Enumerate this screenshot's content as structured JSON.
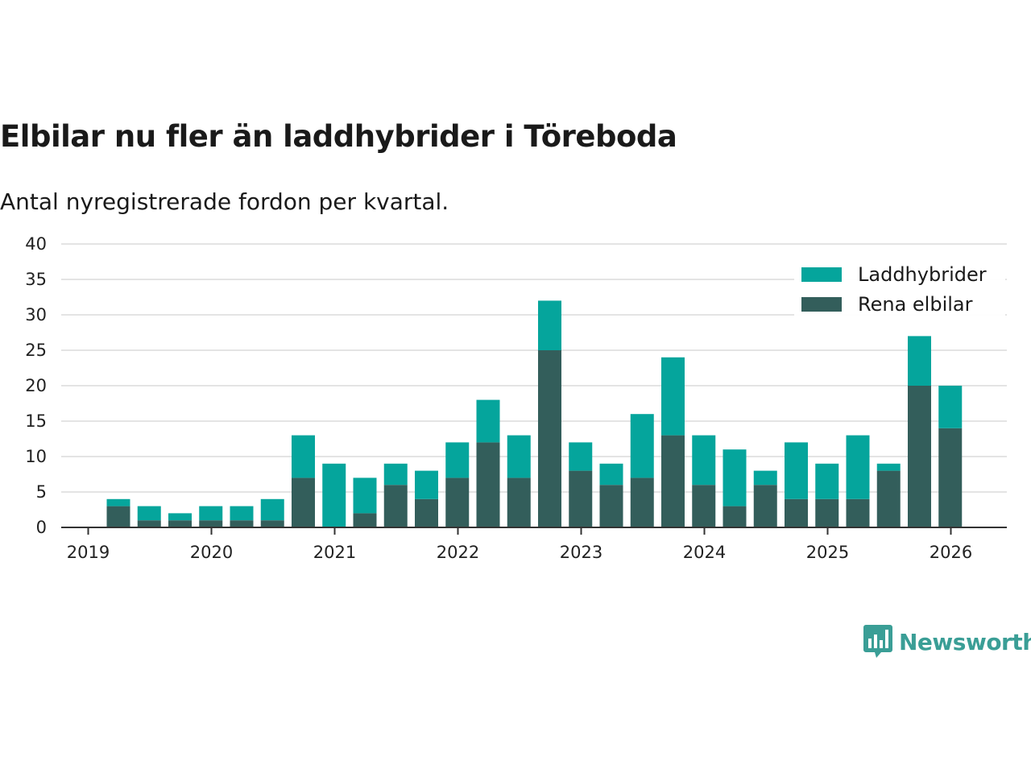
{
  "title": "Elbilar nu fler än laddhybrider i Töreboda",
  "subtitle": "Antal nyregistrerade fordon per kvartal.",
  "brand": {
    "name": "Newsworthy",
    "icon": "newsworthy-logo-icon",
    "color": "#3a9e96"
  },
  "chart_data": {
    "type": "bar",
    "stacked": true,
    "title": "Elbilar nu fler än laddhybrider i Töreboda",
    "subtitle": "Antal nyregistrerade fordon per kvartal.",
    "xlabel": "",
    "ylabel": "",
    "ylim": [
      0,
      40
    ],
    "yticks": [
      0,
      5,
      10,
      15,
      20,
      25,
      30,
      35,
      40
    ],
    "xticks": [
      "2019",
      "2020",
      "2021",
      "2022",
      "2023",
      "2024",
      "2025",
      "2026"
    ],
    "grid": true,
    "legend_position": "top-right",
    "categories": [
      "2019 Q1",
      "2019 Q2",
      "2019 Q3",
      "2019 Q4",
      "2020 Q1",
      "2020 Q2",
      "2020 Q3",
      "2020 Q4",
      "2021 Q1",
      "2021 Q2",
      "2021 Q3",
      "2021 Q4",
      "2022 Q1",
      "2022 Q2",
      "2022 Q3",
      "2022 Q4",
      "2023 Q1",
      "2023 Q2",
      "2023 Q3",
      "2023 Q4",
      "2024 Q1",
      "2024 Q2",
      "2024 Q3",
      "2024 Q4",
      "2025 Q1",
      "2025 Q2",
      "2025 Q3",
      "2025 Q4"
    ],
    "series": [
      {
        "name": "Rena elbilar",
        "color": "#335e5b",
        "values": [
          3,
          1,
          1,
          1,
          1,
          1,
          7,
          0,
          2,
          6,
          4,
          7,
          12,
          7,
          25,
          8,
          6,
          7,
          13,
          6,
          3,
          6,
          4,
          4,
          4,
          8,
          20,
          14
        ]
      },
      {
        "name": "Laddhybrider",
        "color": "#05a59c",
        "values": [
          1,
          2,
          1,
          2,
          2,
          3,
          6,
          9,
          5,
          3,
          4,
          5,
          6,
          6,
          7,
          4,
          3,
          9,
          11,
          7,
          8,
          2,
          8,
          5,
          9,
          1,
          7,
          6
        ]
      }
    ],
    "legend": [
      "Laddhybrider",
      "Rena elbilar"
    ]
  }
}
